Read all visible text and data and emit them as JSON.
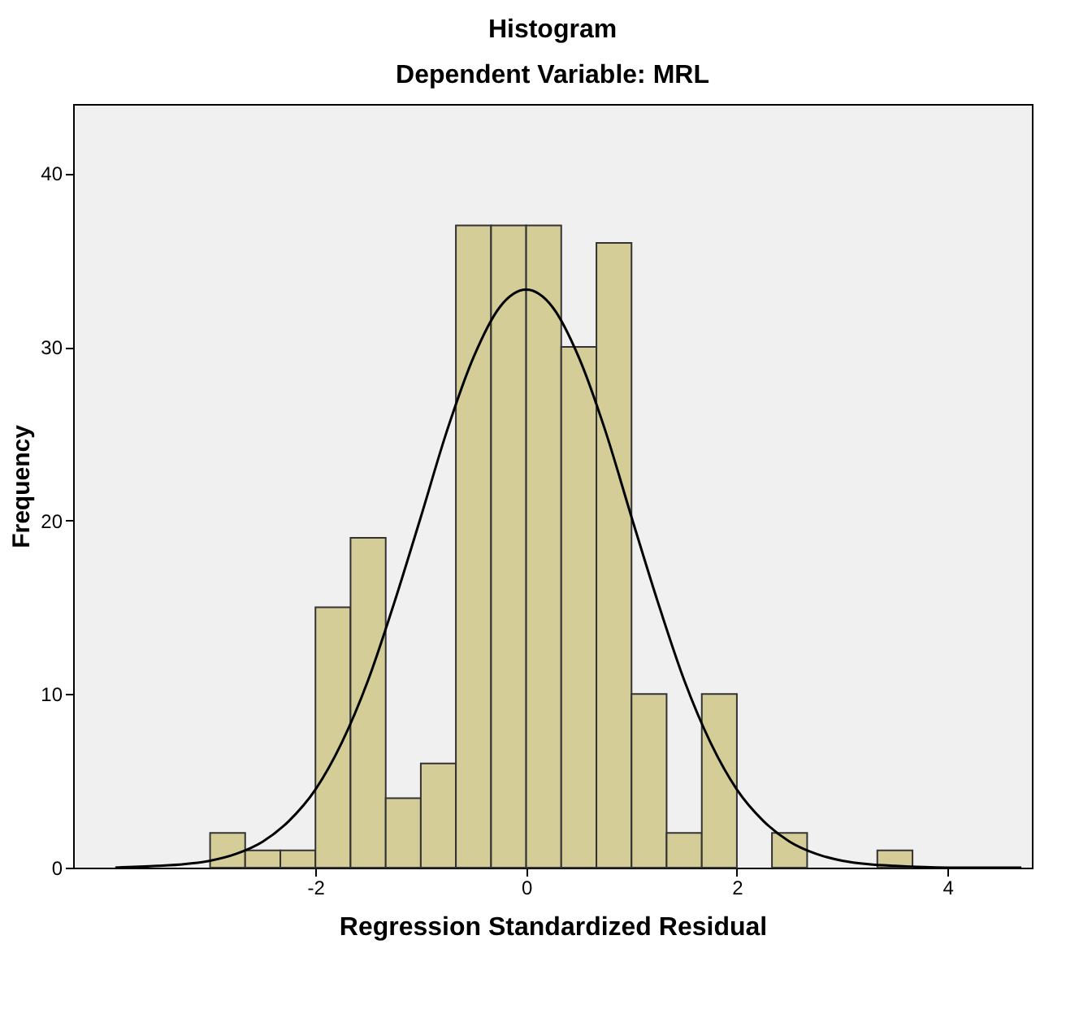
{
  "chart_data": {
    "type": "histogram",
    "title": "Histogram",
    "subtitle": "Dependent Variable: MRL",
    "xlabel": "Regression Standardized Residual",
    "ylabel": "Frequency",
    "bins": [
      -3,
      -2.667,
      -2.333,
      -2,
      -1.667,
      -1.333,
      -1,
      -0.667,
      -0.333,
      0,
      0.333,
      0.667,
      1,
      1.333,
      1.667,
      2,
      2.333,
      2.667,
      3,
      3.333,
      3.667
    ],
    "values": [
      2,
      1,
      1,
      15,
      19,
      4,
      6,
      37,
      37,
      37,
      30,
      36,
      10,
      2,
      10,
      0,
      2,
      0,
      0,
      1
    ],
    "color": "#d4cd98",
    "series": [
      {
        "type": "line",
        "color": "#000000",
        "x": [
          -3.9,
          -3.5,
          -3.25,
          -3,
          -2.75,
          -2.5,
          -2.25,
          -2,
          -1.75,
          -1.5,
          -1.25,
          -1,
          -0.75,
          -0.5,
          -0.25,
          0,
          0.25,
          0.5,
          0.75,
          1,
          1.25,
          1.5,
          1.75,
          2,
          2.25,
          2.5,
          2.75,
          3,
          3.25,
          3.5,
          4,
          4.7
        ],
        "values": [
          0.0,
          0.1,
          0.2,
          0.4,
          0.8,
          1.5,
          2.7,
          4.5,
          7.2,
          10.8,
          15.3,
          20.2,
          25.2,
          29.4,
          32.3,
          33.3,
          32.3,
          29.4,
          25.2,
          20.2,
          15.3,
          10.8,
          7.2,
          4.5,
          2.7,
          1.5,
          0.8,
          0.4,
          0.2,
          0.1,
          0.0,
          0.0
        ]
      }
    ],
    "xlim": [
      -4.3,
      4.8
    ],
    "ylim": [
      0,
      44
    ],
    "xticks": [
      -2,
      0,
      2,
      4
    ],
    "yticks": [
      0,
      10,
      20,
      30,
      40
    ],
    "grid": false
  }
}
